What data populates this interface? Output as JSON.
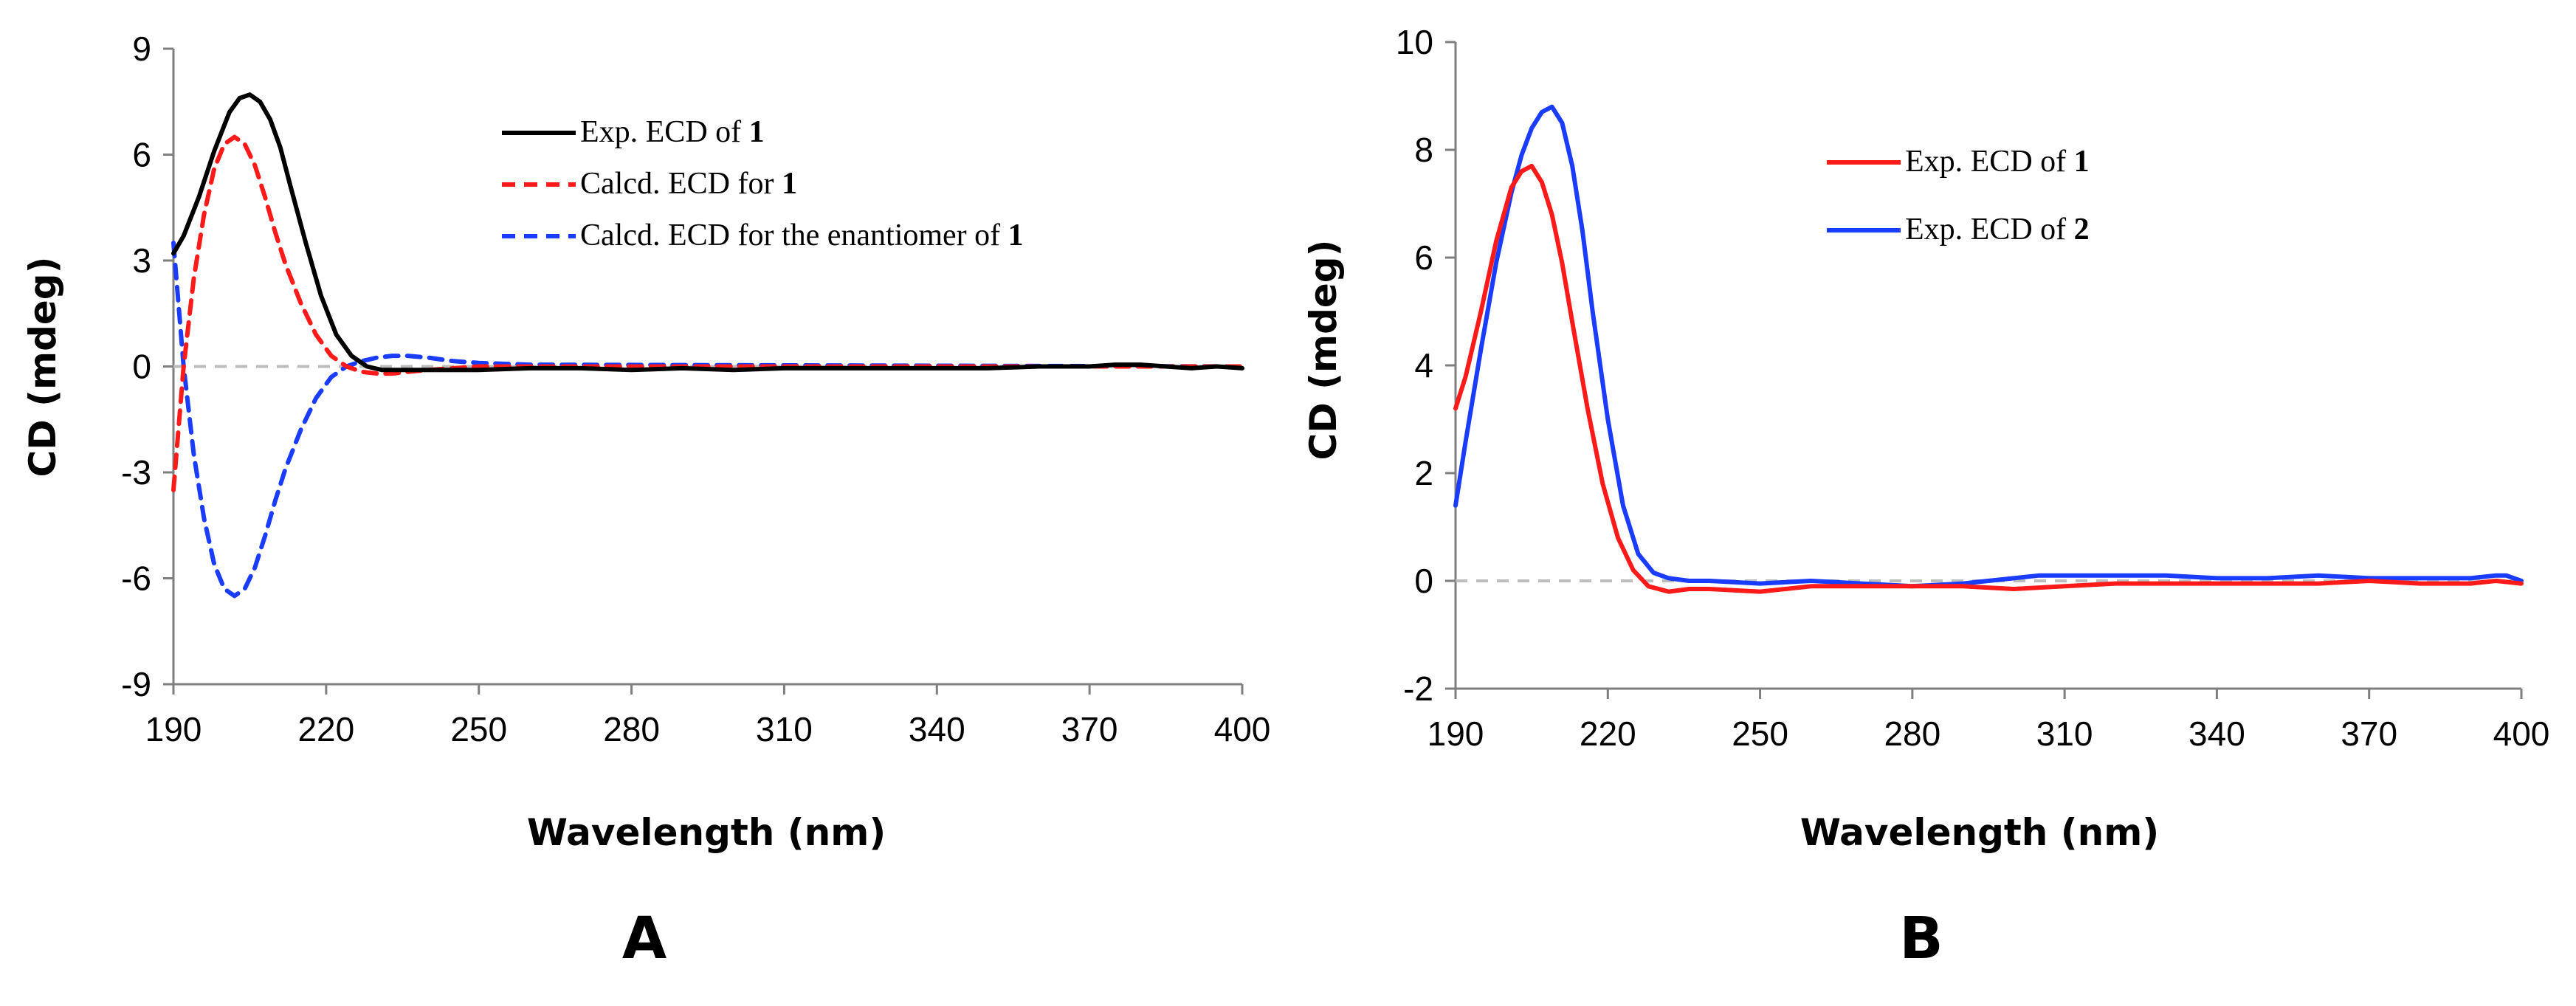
{
  "chart_data": [
    {
      "panel": "A",
      "type": "line",
      "xlabel": "Wavelength (nm)",
      "ylabel": "CD (mdeg)",
      "xlim": [
        190,
        400
      ],
      "ylim": [
        -9,
        9
      ],
      "xticks": [
        "190",
        "220",
        "250",
        "280",
        "310",
        "340",
        "370",
        "400"
      ],
      "yticks": [
        "9",
        "6",
        "3",
        "0",
        "-3",
        "-6",
        "-9"
      ],
      "baseline": 0,
      "legend_position": "top-right",
      "series": [
        {
          "name_prefix": "Exp. ECD of ",
          "name_bold": "1",
          "color": "#000000",
          "dash": "solid",
          "x": [
            190,
            192,
            195,
            198,
            201,
            203,
            205,
            207,
            209,
            211,
            213,
            216,
            219,
            222,
            225,
            228,
            231,
            235,
            240,
            250,
            260,
            270,
            280,
            290,
            300,
            310,
            320,
            330,
            340,
            350,
            360,
            370,
            375,
            380,
            385,
            390,
            395,
            400
          ],
          "y": [
            3.2,
            3.7,
            4.8,
            6.1,
            7.2,
            7.6,
            7.7,
            7.5,
            7.0,
            6.2,
            5.1,
            3.5,
            2.0,
            0.9,
            0.3,
            0.0,
            -0.1,
            -0.1,
            -0.1,
            -0.1,
            -0.05,
            -0.05,
            -0.1,
            -0.05,
            -0.1,
            -0.05,
            -0.05,
            -0.05,
            -0.05,
            -0.05,
            0.0,
            0.0,
            0.05,
            0.05,
            0.0,
            -0.05,
            0.0,
            -0.05
          ]
        },
        {
          "name_prefix": "Calcd. ECD for ",
          "name_bold": "1",
          "color": "#ff1a1a",
          "dash": "dashed",
          "x": [
            190,
            192,
            194,
            196,
            198,
            200,
            202,
            204,
            206,
            208,
            210,
            212,
            215,
            218,
            221,
            224,
            227,
            230,
            233,
            236,
            240,
            245,
            250,
            260,
            400
          ],
          "y": [
            -3.5,
            0.0,
            2.5,
            4.3,
            5.6,
            6.3,
            6.5,
            6.3,
            5.7,
            4.8,
            3.8,
            2.9,
            1.8,
            0.9,
            0.3,
            0.0,
            -0.15,
            -0.2,
            -0.2,
            -0.15,
            -0.1,
            -0.05,
            0.0,
            0.0,
            0.0
          ]
        },
        {
          "name_prefix": "Calcd. ECD for the enantiomer of ",
          "name_bold": "1",
          "color": "#1a3cff",
          "dash": "dashed",
          "x": [
            190,
            192,
            194,
            196,
            198,
            200,
            202,
            204,
            206,
            208,
            210,
            212,
            215,
            218,
            221,
            224,
            227,
            230,
            233,
            236,
            240,
            245,
            250,
            260,
            400
          ],
          "y": [
            3.5,
            0.0,
            -2.5,
            -4.3,
            -5.6,
            -6.3,
            -6.5,
            -6.3,
            -5.7,
            -4.8,
            -3.8,
            -2.9,
            -1.8,
            -0.9,
            -0.3,
            0.0,
            0.15,
            0.25,
            0.3,
            0.3,
            0.25,
            0.15,
            0.1,
            0.05,
            0.0
          ]
        }
      ]
    },
    {
      "panel": "B",
      "type": "line",
      "xlabel": "Wavelength (nm)",
      "ylabel": "CD (mdeg)",
      "xlim": [
        190,
        400
      ],
      "ylim": [
        -2,
        10
      ],
      "xticks": [
        "190",
        "220",
        "250",
        "280",
        "310",
        "340",
        "370",
        "400"
      ],
      "yticks": [
        "10",
        "8",
        "6",
        "4",
        "2",
        "0",
        "-2"
      ],
      "baseline": 0,
      "legend_position": "top-center",
      "series": [
        {
          "name_prefix": "Exp. ECD of ",
          "name_bold": "1",
          "color": "#ff1a1a",
          "dash": "solid",
          "x": [
            190,
            192,
            195,
            198,
            201,
            203,
            205,
            207,
            209,
            211,
            213,
            216,
            219,
            222,
            225,
            228,
            232,
            236,
            240,
            250,
            255,
            260,
            270,
            280,
            290,
            300,
            310,
            320,
            330,
            340,
            350,
            360,
            370,
            380,
            390,
            395,
            400
          ],
          "y": [
            3.2,
            3.8,
            5.0,
            6.3,
            7.3,
            7.6,
            7.7,
            7.4,
            6.8,
            5.9,
            4.8,
            3.2,
            1.8,
            0.8,
            0.2,
            -0.1,
            -0.2,
            -0.15,
            -0.15,
            -0.2,
            -0.15,
            -0.1,
            -0.1,
            -0.1,
            -0.1,
            -0.15,
            -0.1,
            -0.05,
            -0.05,
            -0.05,
            -0.05,
            -0.05,
            0.0,
            -0.05,
            -0.05,
            0.0,
            -0.05
          ]
        },
        {
          "name_prefix": "Exp. ECD of ",
          "name_bold": "2",
          "color": "#1a3cff",
          "dash": "solid",
          "x": [
            190,
            192,
            195,
            198,
            201,
            203,
            205,
            207,
            209,
            211,
            213,
            215,
            217,
            220,
            223,
            226,
            229,
            232,
            236,
            240,
            250,
            260,
            270,
            280,
            290,
            300,
            305,
            310,
            320,
            330,
            340,
            350,
            360,
            370,
            380,
            390,
            395,
            397,
            400
          ],
          "y": [
            1.4,
            2.6,
            4.3,
            5.9,
            7.2,
            7.9,
            8.4,
            8.7,
            8.8,
            8.5,
            7.7,
            6.5,
            5.0,
            3.0,
            1.4,
            0.5,
            0.15,
            0.05,
            0.0,
            0.0,
            -0.05,
            0.0,
            -0.05,
            -0.1,
            -0.05,
            0.05,
            0.1,
            0.1,
            0.1,
            0.1,
            0.05,
            0.05,
            0.1,
            0.05,
            0.05,
            0.05,
            0.1,
            0.1,
            0.0
          ]
        }
      ]
    }
  ]
}
